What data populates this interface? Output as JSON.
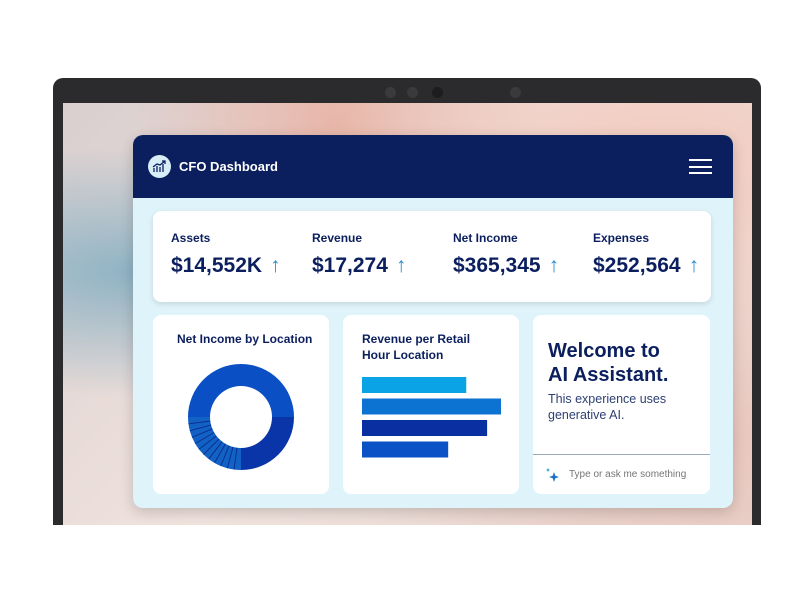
{
  "header": {
    "title": "CFO Dashboard",
    "logo_icon": "chart-trend-icon",
    "menu_icon": "hamburger-menu-icon"
  },
  "kpis": [
    {
      "label": "Assets",
      "value": "$14,552K",
      "trend": "up"
    },
    {
      "label": "Revenue",
      "value": "$17,274",
      "trend": "up"
    },
    {
      "label": "Net Income",
      "value": "$365,345",
      "trend": "up"
    },
    {
      "label": "Expenses",
      "value": "$252,564",
      "trend": "up"
    }
  ],
  "arrow_glyph": "↑",
  "colors": {
    "navy": "#0b1f5e",
    "panel": "#dff3fa",
    "accent": "#2a8fd0"
  },
  "donut_card": {
    "title": "Net Income by Location"
  },
  "bar_card": {
    "title_line1": "Revenue per Retail",
    "title_line2": "Hour Location"
  },
  "assistant": {
    "heading_line1": "Welcome to",
    "heading_line2": "AI Assistant.",
    "sub_line1": "This experience uses",
    "sub_line2": "generative AI.",
    "placeholder": "Type or ask me something",
    "icon": "sparkle-icon"
  },
  "chart_data": [
    {
      "type": "pie",
      "title": "Net Income by Location",
      "values": [
        50,
        25,
        25
      ],
      "colors": [
        "#0a4fc4",
        "#0a35a8",
        "#1262c6"
      ]
    },
    {
      "type": "bar",
      "title": "Revenue per Retail Hour Location",
      "orientation": "horizontal",
      "values": [
        0.75,
        1.0,
        0.9,
        0.62
      ],
      "colors": [
        "#0aa3e6",
        "#0c73d2",
        "#0a2fa0",
        "#0a52c6"
      ]
    }
  ]
}
